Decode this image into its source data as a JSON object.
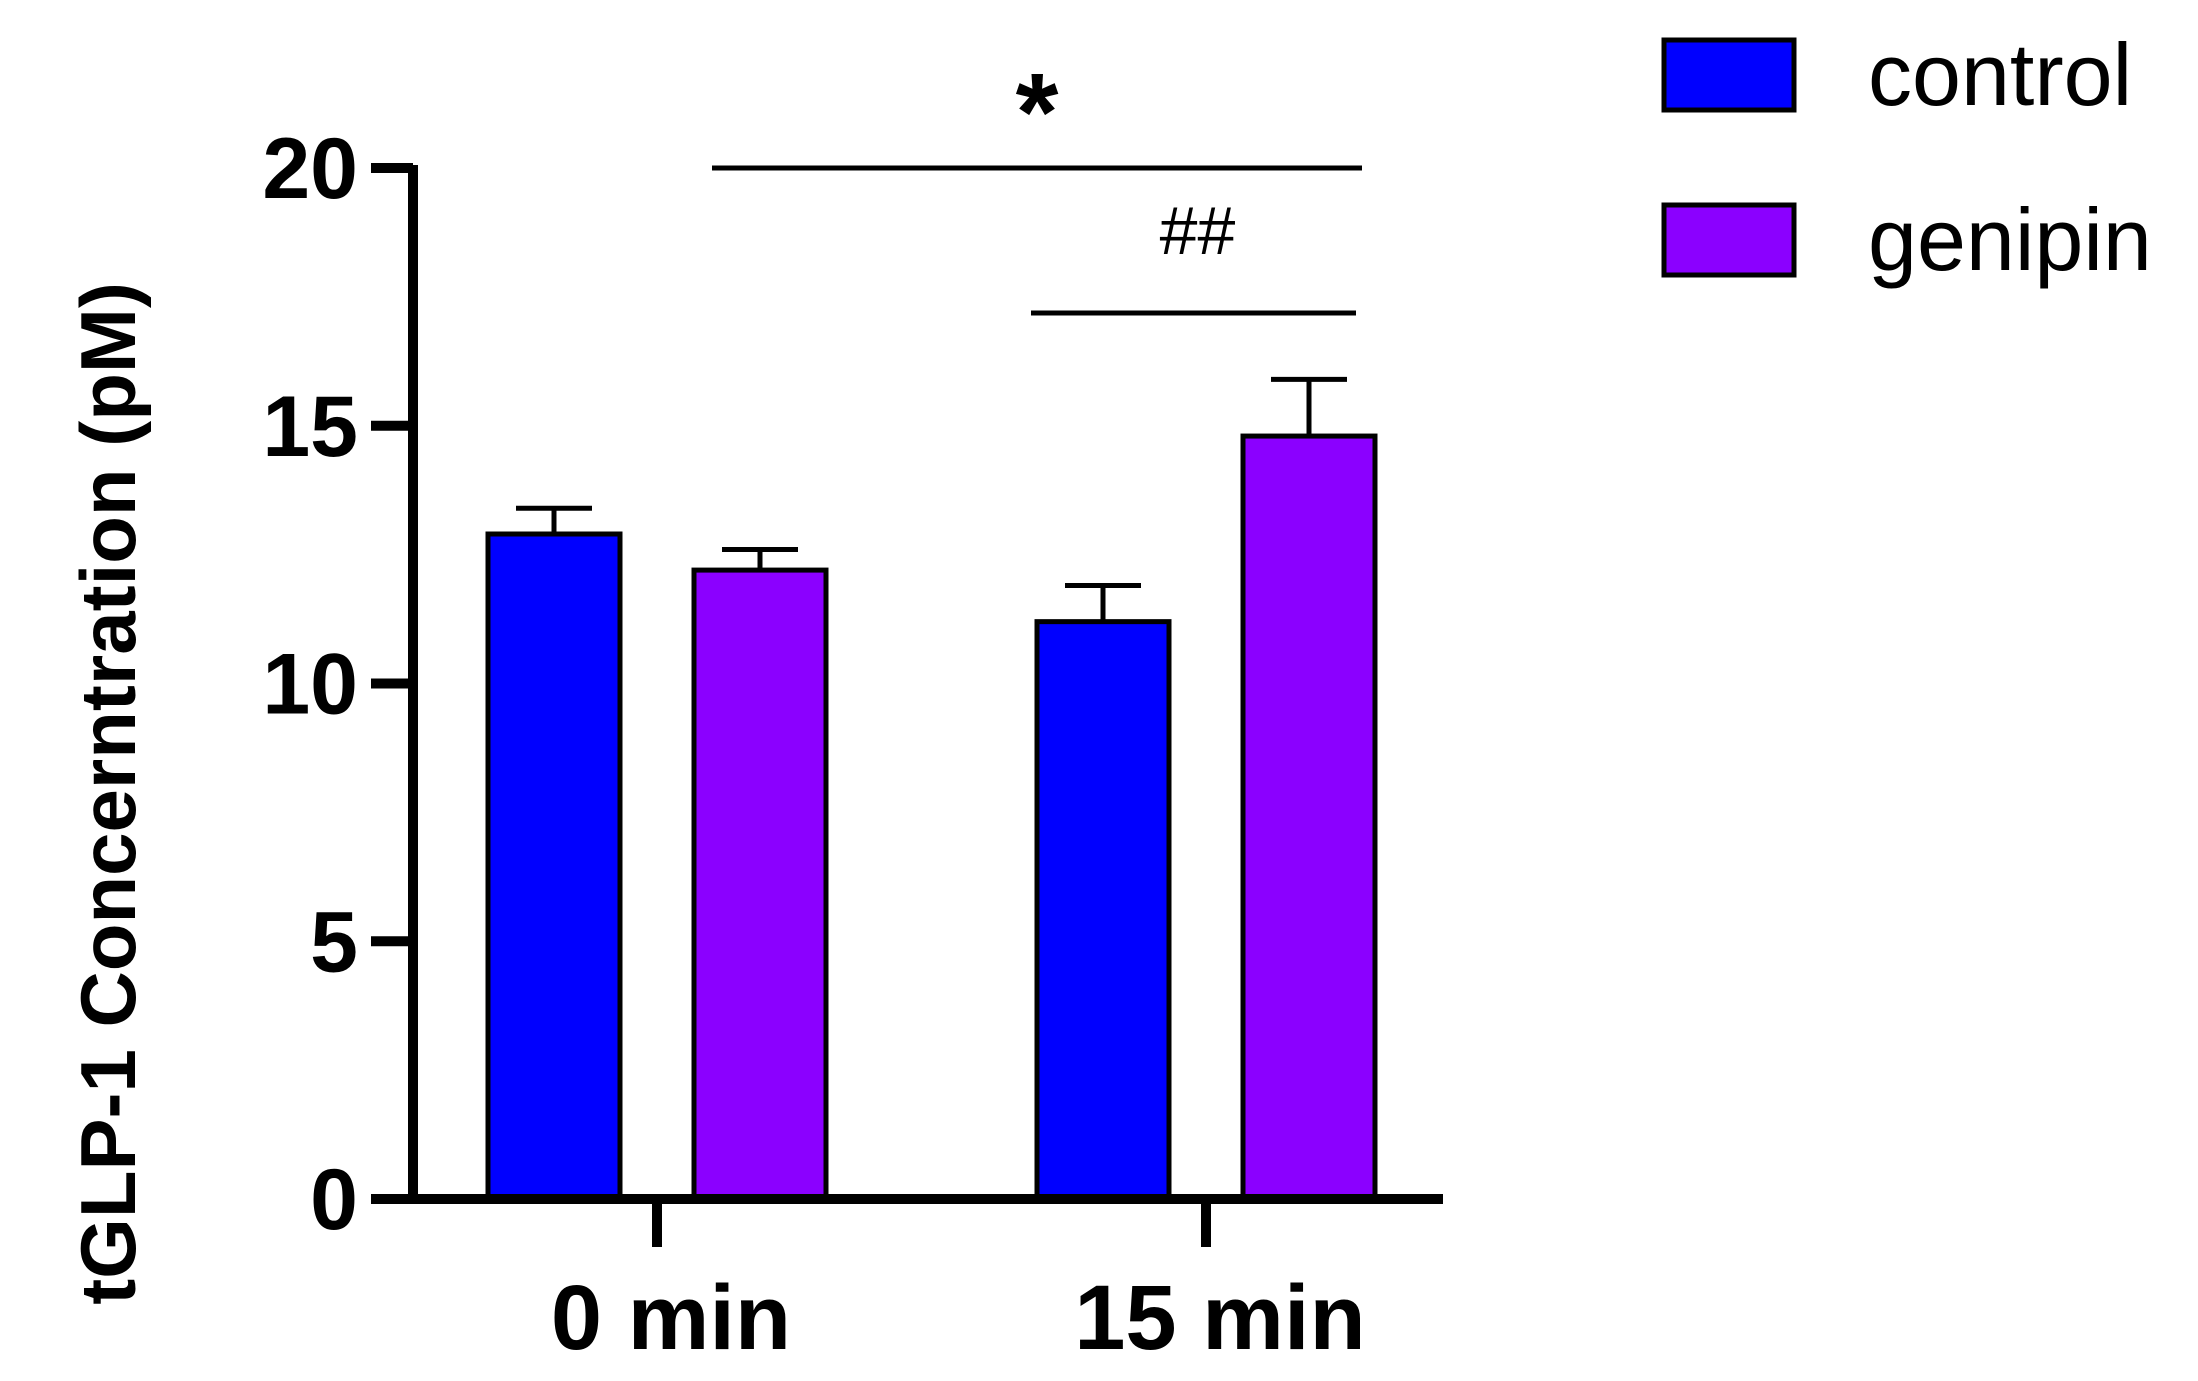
{
  "chart_data": {
    "type": "bar",
    "categories": [
      "0 min",
      "15 min"
    ],
    "series": [
      {
        "name": "control",
        "color": "#0000ff",
        "values": [
          12.9,
          11.2
        ],
        "errors": [
          0.5,
          0.7
        ]
      },
      {
        "name": "genipin",
        "color": "#8b00ff",
        "values": [
          12.2,
          14.8
        ],
        "errors": [
          0.4,
          1.1
        ]
      }
    ],
    "ylabel": "tGLP-1 Concerntration (pM)",
    "xlabel": "",
    "ylim": [
      0,
      20
    ],
    "yticks": [
      "0",
      "5",
      "10",
      "15",
      "20"
    ],
    "legend": {
      "position": "top-right"
    },
    "annotations": [
      {
        "text": "*",
        "from": "0 min genipin",
        "to": "15 min genipin",
        "y": 20
      },
      {
        "text": "##",
        "from": "15 min control",
        "to": "15 min genipin",
        "y": 17.2
      }
    ]
  }
}
